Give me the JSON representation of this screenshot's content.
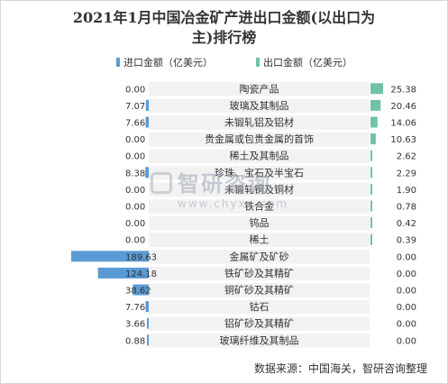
{
  "chart_data": {
    "type": "bar",
    "title": "2021年1月中国冶金矿产进出口金额(以出口为主)排行榜",
    "title_lines": [
      "2021年1月中国冶金矿产进出口金额(以出口为",
      "主)排行榜"
    ],
    "orientation": "horizontal-butterfly",
    "categories": [
      "陶瓷产品",
      "玻璃及其制品",
      "未锻轧铝及铝材",
      "贵金属或包贵金属的首饰",
      "稀土及其制品",
      "珍珠、宝石及半宝石",
      "未锻轧铜及铜材",
      "铁合金",
      "钨品",
      "稀土",
      "金属矿及矿砂",
      "铁矿砂及其精矿",
      "铜矿砂及其精矿",
      "钴石",
      "铝矿砂及其精矿",
      "玻璃纤维及其制品"
    ],
    "series": [
      {
        "name": "进口金额（亿美元）",
        "color": "#5b9bd5",
        "labels": [
          "0.00",
          "7.07",
          "7.66",
          "0.00",
          "0.00",
          "8.38",
          "0.00",
          "0.00",
          "0.00",
          "0.00",
          "189.63",
          "124.18",
          "38.62",
          "7.76",
          "3.66",
          "0.88"
        ],
        "values": [
          0.0,
          7.07,
          7.66,
          0.0,
          0.0,
          8.38,
          0.0,
          0.0,
          0.0,
          0.0,
          189.63,
          124.18,
          38.62,
          7.76,
          3.66,
          0.88
        ]
      },
      {
        "name": "出口金额（亿美元）",
        "color": "#70c1a8",
        "labels": [
          "25.38",
          "20.46",
          "14.06",
          "10.63",
          "2.62",
          "2.29",
          "1.90",
          "0.78",
          "0.42",
          "0.39",
          "0.00",
          "0.00",
          "0.00",
          "0.00",
          "0.00",
          "0.00"
        ],
        "values": [
          25.38,
          20.46,
          14.06,
          10.63,
          2.62,
          2.29,
          1.9,
          0.78,
          0.42,
          0.39,
          0.0,
          0.0,
          0.0,
          0.0,
          0.0,
          0.0
        ]
      }
    ],
    "row_band_color": "#f2f2f2",
    "legend": "top"
  },
  "watermark": {
    "name": "智研咨询",
    "url": "www.chyxx.com"
  },
  "source": "数据来源：中国海关，智研咨询整理"
}
